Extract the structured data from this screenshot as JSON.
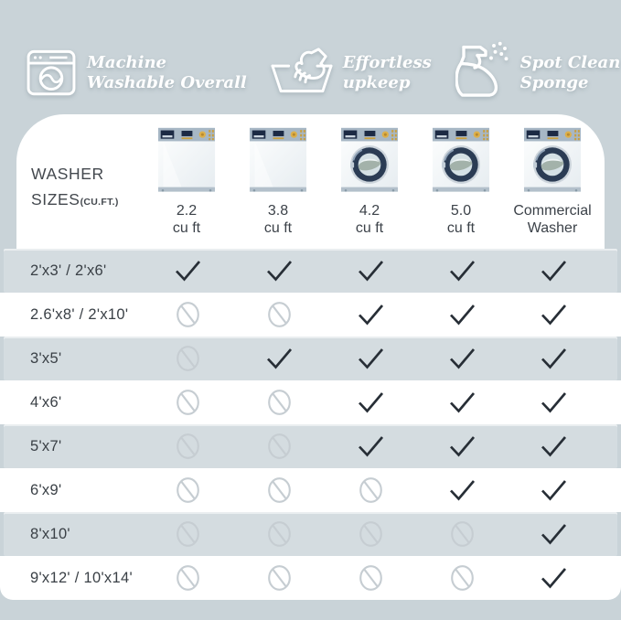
{
  "features": [
    {
      "icon": "washing-machine-icon",
      "line1": "Machine",
      "line2": "Washable Overall"
    },
    {
      "icon": "hand-wash-icon",
      "line1": "Effortless",
      "line2": "upkeep"
    },
    {
      "icon": "spray-bottle-icon",
      "line1": "Spot Clean",
      "line2": "Sponge"
    }
  ],
  "table": {
    "title_line1": "WASHER",
    "title_line2": "SIZES",
    "title_suffix": "(CU.FT.)",
    "columns": [
      {
        "line1": "2.2",
        "line2": "cu ft",
        "washer_type": "top-load"
      },
      {
        "line1": "3.8",
        "line2": "cu ft",
        "washer_type": "top-load"
      },
      {
        "line1": "4.2",
        "line2": "cu ft",
        "washer_type": "front-load"
      },
      {
        "line1": "5.0",
        "line2": "cu ft",
        "washer_type": "front-load"
      },
      {
        "line1": "Commercial",
        "line2": "Washer",
        "washer_type": "front-load"
      }
    ],
    "rows": [
      {
        "label": "2'x3' / 2'x6'",
        "cells": [
          "check",
          "check",
          "check",
          "check",
          "check"
        ]
      },
      {
        "label": "2.6'x8' / 2'x10'",
        "cells": [
          "no",
          "no",
          "check",
          "check",
          "check"
        ]
      },
      {
        "label": "3'x5'",
        "cells": [
          "no",
          "check",
          "check",
          "check",
          "check"
        ]
      },
      {
        "label": "4'x6'",
        "cells": [
          "no",
          "no",
          "check",
          "check",
          "check"
        ]
      },
      {
        "label": "5'x7'",
        "cells": [
          "no",
          "no",
          "check",
          "check",
          "check"
        ]
      },
      {
        "label": "6'x9'",
        "cells": [
          "no",
          "no",
          "no",
          "check",
          "check"
        ]
      },
      {
        "label": "8'x10'",
        "cells": [
          "no",
          "no",
          "no",
          "no",
          "check"
        ]
      },
      {
        "label": "9'x12' / 10'x14'",
        "cells": [
          "no",
          "no",
          "no",
          "no",
          "check"
        ]
      }
    ]
  },
  "chart_data": {
    "type": "table",
    "title": "WASHER SIZES(CU.FT.)",
    "columns": [
      "2.2 cu ft",
      "3.8 cu ft",
      "4.2 cu ft",
      "5.0 cu ft",
      "Commercial Washer"
    ],
    "row_labels": [
      "2'x3' / 2'x6'",
      "2.6'x8' / 2'x10'",
      "3'x5'",
      "4'x6'",
      "5'x7'",
      "6'x9'",
      "8'x10'",
      "9'x12' / 10'x14'"
    ],
    "values": [
      [
        "check",
        "check",
        "check",
        "check",
        "check"
      ],
      [
        "no",
        "no",
        "check",
        "check",
        "check"
      ],
      [
        "no",
        "check",
        "check",
        "check",
        "check"
      ],
      [
        "no",
        "no",
        "check",
        "check",
        "check"
      ],
      [
        "no",
        "no",
        "check",
        "check",
        "check"
      ],
      [
        "no",
        "no",
        "no",
        "check",
        "check"
      ],
      [
        "no",
        "no",
        "no",
        "no",
        "check"
      ],
      [
        "no",
        "no",
        "no",
        "no",
        "check"
      ]
    ]
  },
  "colors": {
    "background": "#c9d3d8",
    "card": "#ffffff",
    "row_alternate": "#d4dce0",
    "checkmark": "#272e36",
    "not_available": "#c6cdd2",
    "heading_text": "#43484e",
    "label_text": "#3a4046",
    "feature_text": "#ffffff",
    "washer_panel": "#a7b7c5",
    "washer_display": "#1c2a44",
    "washer_gold": "#ddb04b",
    "washer_door": "#2b3c54"
  }
}
